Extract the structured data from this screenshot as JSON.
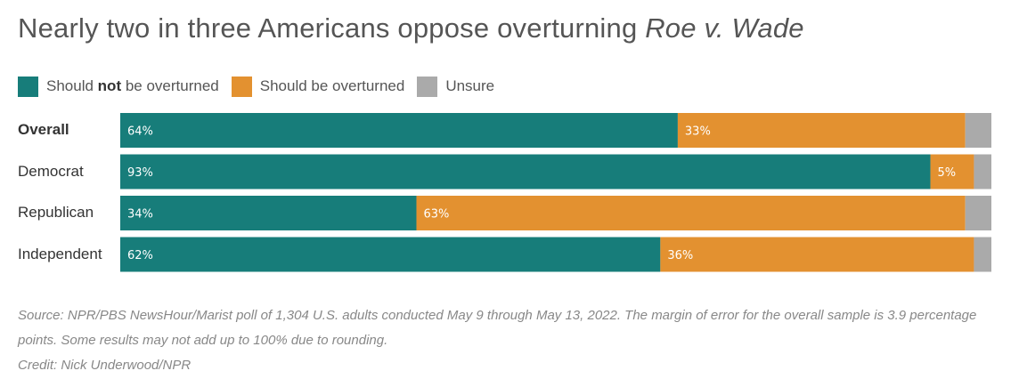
{
  "title_main": "Nearly two in three Americans oppose overturning ",
  "title_italic": "Roe v. Wade",
  "legend": [
    {
      "pre": "Should ",
      "bold": "not",
      "post": " be overturned",
      "color": "#177d7a"
    },
    {
      "pre": "Should be overturned",
      "bold": "",
      "post": "",
      "color": "#e39130"
    },
    {
      "pre": "Unsure",
      "bold": "",
      "post": "",
      "color": "#aaaaaa"
    }
  ],
  "chart_data": {
    "type": "bar",
    "orientation": "horizontal",
    "stacked": true,
    "categories": [
      "Overall",
      "Democrat",
      "Republican",
      "Independent"
    ],
    "series": [
      {
        "name": "Should not be overturned",
        "values": [
          64,
          93,
          34,
          62
        ],
        "labels": [
          "64%",
          "93%",
          "34%",
          "62%"
        ],
        "color": "#177d7a"
      },
      {
        "name": "Should be overturned",
        "values": [
          33,
          5,
          63,
          36
        ],
        "labels": [
          "33%",
          "5%",
          "63%",
          "36%"
        ],
        "color": "#e39130"
      },
      {
        "name": "Unsure",
        "values": [
          3,
          2,
          3,
          2
        ],
        "labels": [
          "",
          "",
          "",
          ""
        ],
        "color": "#aaaaaa"
      }
    ],
    "xlim": [
      0,
      100
    ],
    "legend_position": "top-left",
    "grid": false
  },
  "source": "Source: NPR/PBS NewsHour/Marist poll of 1,304 U.S. adults conducted May 9 through May 13, 2022. The margin of error for the overall sample is 3.9 percentage points. Some results may not add up to 100% due to rounding.",
  "credit": "Credit: Nick Underwood/NPR"
}
